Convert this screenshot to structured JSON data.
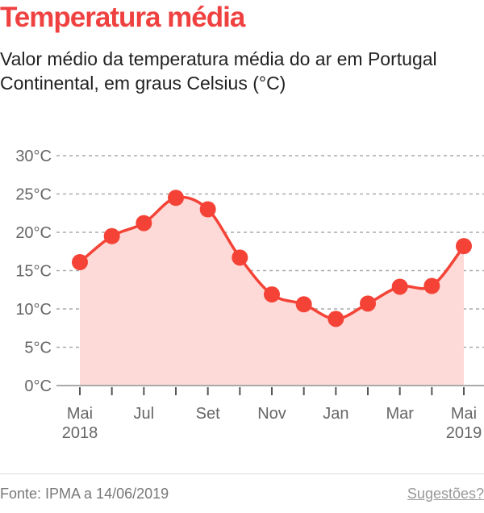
{
  "title": "Temperatura média",
  "subtitle": "Valor médio da temperatura média do ar em Portugal Continental, em graus Celsius (°C)",
  "source": "Fonte: IPMA a 14/06/2019",
  "suggestions_link": "Sugestões?",
  "colors": {
    "line": "#f44336",
    "area": "#fdd9d7",
    "title": "#f04141"
  },
  "chart_data": {
    "type": "area",
    "x": [
      "2018-05",
      "2018-06",
      "2018-07",
      "2018-08",
      "2018-09",
      "2018-10",
      "2018-11",
      "2018-12",
      "2019-01",
      "2019-02",
      "2019-03",
      "2019-04",
      "2019-05"
    ],
    "values": [
      16.1,
      19.5,
      21.2,
      24.5,
      23.0,
      16.7,
      11.9,
      10.6,
      8.7,
      10.7,
      12.9,
      13.0,
      18.2
    ],
    "ylim": [
      0,
      30
    ],
    "yticks": [
      0,
      5,
      10,
      15,
      20,
      25,
      30
    ],
    "ytick_labels": [
      "0°C",
      "5°C",
      "10°C",
      "15°C",
      "20°C",
      "25°C",
      "30°C"
    ],
    "xtick_labels": [
      {
        "index": 0,
        "line1": "Mai",
        "line2": "2018"
      },
      {
        "index": 2,
        "line1": "Jul",
        "line2": ""
      },
      {
        "index": 4,
        "line1": "Set",
        "line2": ""
      },
      {
        "index": 6,
        "line1": "Nov",
        "line2": ""
      },
      {
        "index": 8,
        "line1": "Jan",
        "line2": ""
      },
      {
        "index": 10,
        "line1": "Mar",
        "line2": ""
      },
      {
        "index": 12,
        "line1": "Mai",
        "line2": "2019"
      }
    ],
    "grid": true,
    "gridstyle": "dashed"
  }
}
